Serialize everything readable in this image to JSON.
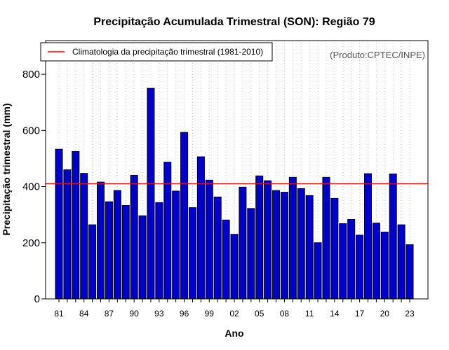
{
  "chart_data": {
    "type": "bar",
    "title": "Precipitação Acumulada Trimestral (SON): Região 79",
    "xlabel": "Ano",
    "ylabel": "Precipitação trimestral (mm)",
    "ylim": [
      0,
      920
    ],
    "yticks": [
      0,
      200,
      400,
      600,
      800
    ],
    "years": [
      1981,
      1982,
      1983,
      1984,
      1985,
      1986,
      1987,
      1988,
      1989,
      1990,
      1991,
      1992,
      1993,
      1994,
      1995,
      1996,
      1997,
      1998,
      1999,
      2000,
      2001,
      2002,
      2003,
      2004,
      2005,
      2006,
      2007,
      2008,
      2009,
      2010,
      2011,
      2012,
      2013,
      2014,
      2015,
      2016,
      2017,
      2018,
      2019,
      2020,
      2021,
      2022,
      2023
    ],
    "x_tick_labels": [
      "81",
      "84",
      "87",
      "90",
      "93",
      "96",
      "99",
      "02",
      "05",
      "08",
      "11",
      "14",
      "17",
      "20",
      "23"
    ],
    "values": [
      533,
      460,
      525,
      447,
      264,
      416,
      346,
      386,
      333,
      440,
      296,
      750,
      343,
      487,
      384,
      593,
      325,
      506,
      423,
      363,
      281,
      230,
      398,
      322,
      438,
      421,
      386,
      380,
      433,
      393,
      368,
      200,
      433,
      358,
      268,
      283,
      227,
      446,
      270,
      238,
      445,
      264,
      193
    ],
    "bar_color": "#0000CD",
    "reference_line": {
      "label": "Climatologia da precipitação trimestral (1981-2010)",
      "value": 410,
      "color": "#FF0000"
    },
    "legend_position": "top-left",
    "grid": "vertical dotted",
    "credit": "(Produto:CPTEC/INPE)"
  }
}
